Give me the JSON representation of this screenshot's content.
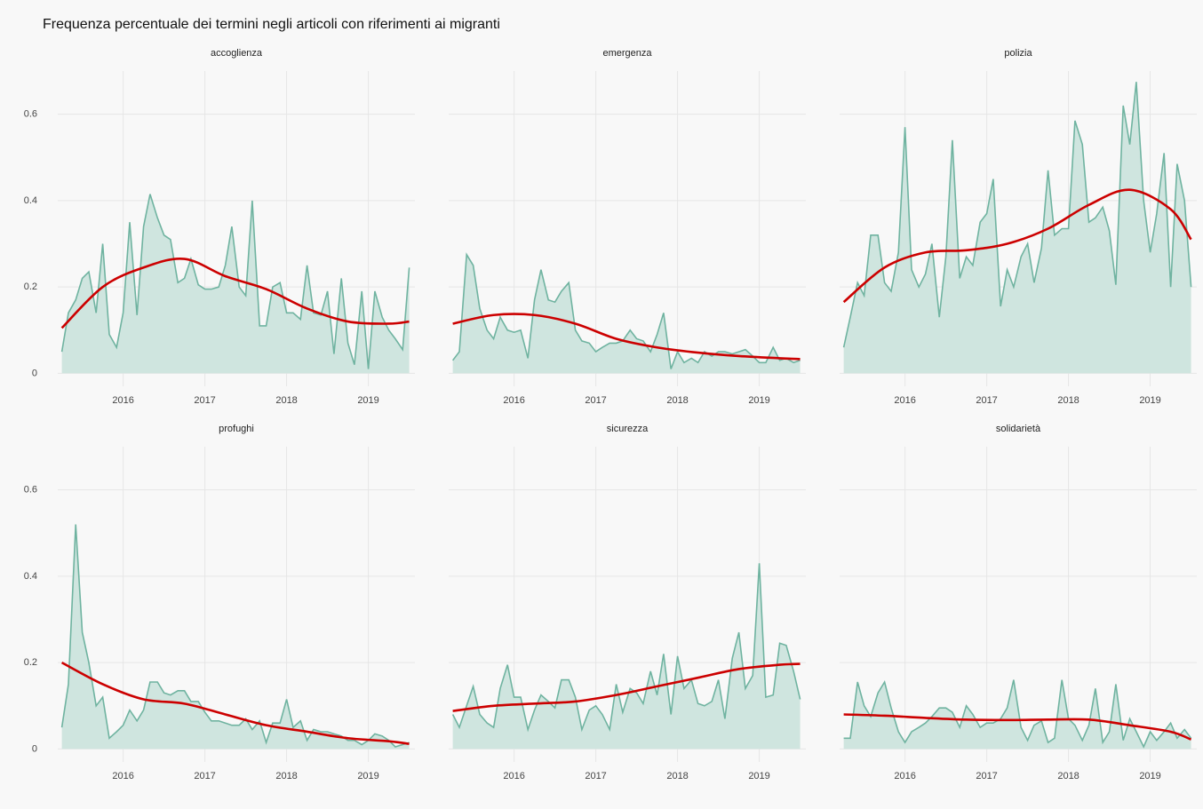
{
  "chart_data": {
    "type": "area",
    "title": "Frequenza percentuale dei termini negli articoli con riferimenti ai migranti",
    "x": [
      2015.25,
      2015.33,
      2015.42,
      2015.5,
      2015.58,
      2015.67,
      2015.75,
      2015.83,
      2015.92,
      2016,
      2016.08,
      2016.17,
      2016.25,
      2016.33,
      2016.42,
      2016.5,
      2016.58,
      2016.67,
      2016.75,
      2016.83,
      2016.92,
      2017,
      2017.08,
      2017.17,
      2017.25,
      2017.33,
      2017.42,
      2017.5,
      2017.58,
      2017.67,
      2017.75,
      2017.83,
      2017.92,
      2018,
      2018.08,
      2018.17,
      2018.25,
      2018.33,
      2018.42,
      2018.5,
      2018.58,
      2018.67,
      2018.75,
      2018.83,
      2018.92,
      2019,
      2019.08,
      2019.17,
      2019.25,
      2019.33,
      2019.42,
      2019.5
    ],
    "trend_x": [
      2015.25,
      2015.75,
      2016.25,
      2016.75,
      2017.25,
      2017.75,
      2018.25,
      2018.75,
      2019.25,
      2019.5
    ],
    "xlim": [
      2015.2,
      2019.57
    ],
    "xticks": [
      2016,
      2017,
      2018,
      2019
    ],
    "ylim": [
      -0.03,
      0.7
    ],
    "yticks": [
      0.0,
      0.2,
      0.4,
      0.6
    ],
    "grid": true,
    "area_color": "#cfe5df",
    "line_color": "#6fb3a0",
    "trend_color": "#cc0000",
    "facets": [
      {
        "title": "accoglienza",
        "values": [
          0.05,
          0.14,
          0.17,
          0.22,
          0.235,
          0.14,
          0.3,
          0.09,
          0.06,
          0.14,
          0.35,
          0.135,
          0.34,
          0.415,
          0.36,
          0.32,
          0.31,
          0.21,
          0.22,
          0.265,
          0.205,
          0.195,
          0.195,
          0.2,
          0.25,
          0.34,
          0.2,
          0.18,
          0.4,
          0.11,
          0.11,
          0.2,
          0.21,
          0.14,
          0.14,
          0.125,
          0.25,
          0.14,
          0.135,
          0.19,
          0.045,
          0.22,
          0.07,
          0.02,
          0.19,
          0.01,
          0.19,
          0.13,
          0.1,
          0.08,
          0.055,
          0.245
        ],
        "trend": [
          0.105,
          0.2,
          0.245,
          0.265,
          0.225,
          0.195,
          0.15,
          0.12,
          0.115,
          0.12
        ]
      },
      {
        "title": "emergenza",
        "values": [
          0.03,
          0.05,
          0.275,
          0.25,
          0.15,
          0.1,
          0.08,
          0.13,
          0.1,
          0.095,
          0.1,
          0.035,
          0.17,
          0.24,
          0.17,
          0.165,
          0.19,
          0.21,
          0.1,
          0.075,
          0.07,
          0.05,
          0.06,
          0.07,
          0.07,
          0.075,
          0.1,
          0.08,
          0.075,
          0.05,
          0.09,
          0.14,
          0.01,
          0.05,
          0.025,
          0.035,
          0.025,
          0.05,
          0.04,
          0.05,
          0.05,
          0.045,
          0.05,
          0.055,
          0.04,
          0.025,
          0.025,
          0.06,
          0.03,
          0.035,
          0.025,
          0.03
        ],
        "trend": [
          0.115,
          0.135,
          0.135,
          0.115,
          0.08,
          0.06,
          0.048,
          0.04,
          0.035,
          0.033
        ]
      },
      {
        "title": "polizia",
        "values": [
          0.06,
          0.13,
          0.21,
          0.18,
          0.32,
          0.32,
          0.21,
          0.19,
          0.28,
          0.57,
          0.24,
          0.2,
          0.23,
          0.3,
          0.13,
          0.27,
          0.54,
          0.22,
          0.27,
          0.25,
          0.35,
          0.37,
          0.45,
          0.155,
          0.24,
          0.2,
          0.27,
          0.3,
          0.21,
          0.29,
          0.47,
          0.32,
          0.335,
          0.335,
          0.585,
          0.53,
          0.35,
          0.36,
          0.385,
          0.33,
          0.205,
          0.62,
          0.53,
          0.675,
          0.4,
          0.28,
          0.37,
          0.51,
          0.2,
          0.485,
          0.4,
          0.2
        ],
        "trend": [
          0.165,
          0.245,
          0.28,
          0.285,
          0.3,
          0.335,
          0.39,
          0.425,
          0.38,
          0.31
        ]
      },
      {
        "title": "profughi",
        "values": [
          0.05,
          0.15,
          0.52,
          0.27,
          0.2,
          0.1,
          0.12,
          0.025,
          0.04,
          0.055,
          0.09,
          0.065,
          0.09,
          0.155,
          0.155,
          0.13,
          0.125,
          0.135,
          0.135,
          0.11,
          0.11,
          0.085,
          0.065,
          0.065,
          0.06,
          0.055,
          0.055,
          0.07,
          0.045,
          0.065,
          0.015,
          0.06,
          0.06,
          0.115,
          0.05,
          0.065,
          0.02,
          0.045,
          0.04,
          0.04,
          0.035,
          0.03,
          0.02,
          0.02,
          0.01,
          0.02,
          0.035,
          0.03,
          0.02,
          0.005,
          0.01,
          0.015
        ],
        "trend": [
          0.2,
          0.15,
          0.115,
          0.105,
          0.08,
          0.055,
          0.04,
          0.025,
          0.018,
          0.012
        ]
      },
      {
        "title": "sicurezza",
        "values": [
          0.08,
          0.05,
          0.1,
          0.145,
          0.08,
          0.06,
          0.05,
          0.14,
          0.195,
          0.12,
          0.12,
          0.045,
          0.09,
          0.125,
          0.11,
          0.095,
          0.16,
          0.16,
          0.12,
          0.045,
          0.09,
          0.1,
          0.08,
          0.045,
          0.15,
          0.085,
          0.14,
          0.13,
          0.105,
          0.18,
          0.125,
          0.22,
          0.08,
          0.215,
          0.14,
          0.16,
          0.105,
          0.1,
          0.11,
          0.16,
          0.07,
          0.21,
          0.27,
          0.14,
          0.17,
          0.43,
          0.12,
          0.125,
          0.245,
          0.24,
          0.18,
          0.115
        ],
        "trend": [
          0.088,
          0.1,
          0.105,
          0.11,
          0.125,
          0.145,
          0.165,
          0.185,
          0.195,
          0.197
        ]
      },
      {
        "title": "solidarietà",
        "values": [
          0.025,
          0.025,
          0.155,
          0.1,
          0.075,
          0.13,
          0.155,
          0.095,
          0.04,
          0.015,
          0.04,
          0.05,
          0.06,
          0.075,
          0.095,
          0.095,
          0.085,
          0.05,
          0.1,
          0.08,
          0.05,
          0.06,
          0.06,
          0.07,
          0.095,
          0.16,
          0.05,
          0.02,
          0.055,
          0.065,
          0.015,
          0.025,
          0.16,
          0.07,
          0.055,
          0.02,
          0.055,
          0.14,
          0.015,
          0.04,
          0.15,
          0.02,
          0.07,
          0.04,
          0.005,
          0.04,
          0.02,
          0.04,
          0.06,
          0.025,
          0.045,
          0.025
        ],
        "trend": [
          0.08,
          0.077,
          0.072,
          0.068,
          0.067,
          0.068,
          0.068,
          0.055,
          0.04,
          0.022
        ]
      }
    ]
  }
}
